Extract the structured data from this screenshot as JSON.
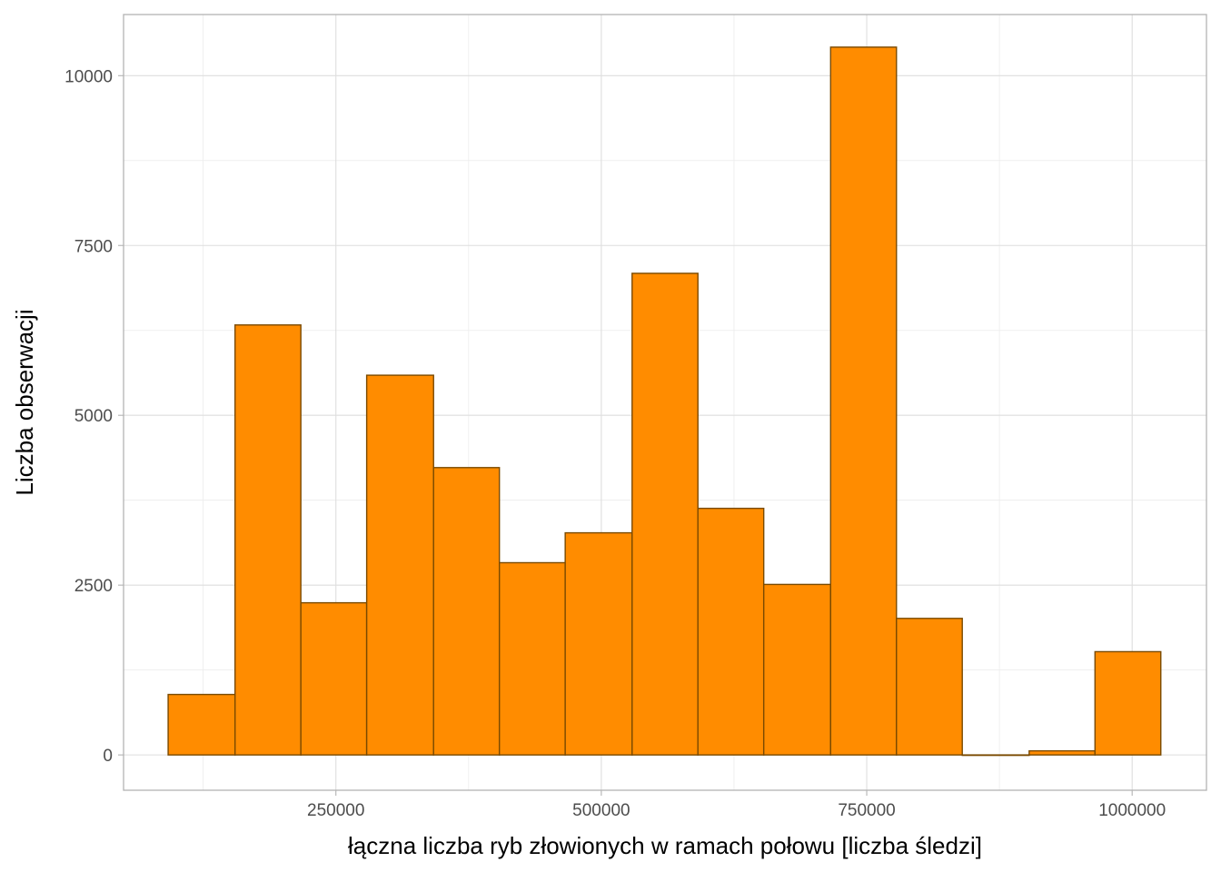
{
  "chart_data": {
    "type": "bar",
    "subtype": "histogram",
    "title": "",
    "xlabel": "łączna liczba ryb złowionych w ramach połowu [liczba śledzi]",
    "ylabel": "Liczba obserwacji",
    "xlim": [
      50000,
      1070000
    ],
    "ylim": [
      -520,
      10900
    ],
    "x_ticks": [
      250000,
      500000,
      750000,
      1000000
    ],
    "x_tick_labels": [
      "250000",
      "500000",
      "750000",
      "1000000"
    ],
    "x_minor_ticks": [
      125000,
      375000,
      625000,
      875000
    ],
    "y_ticks": [
      0,
      2500,
      5000,
      7500,
      10000
    ],
    "y_tick_labels": [
      "0",
      "2500",
      "5000",
      "7500",
      "10000"
    ],
    "y_minor_ticks": [
      1250,
      3750,
      6250,
      8750
    ],
    "grid": true,
    "bins": [
      {
        "x0": 92000,
        "x1": 155000,
        "count": 890
      },
      {
        "x0": 155000,
        "x1": 217000,
        "count": 6330
      },
      {
        "x0": 217000,
        "x1": 279000,
        "count": 2240
      },
      {
        "x0": 279000,
        "x1": 342000,
        "count": 5590
      },
      {
        "x0": 342000,
        "x1": 404000,
        "count": 4230
      },
      {
        "x0": 404000,
        "x1": 466000,
        "count": 2830
      },
      {
        "x0": 466000,
        "x1": 529000,
        "count": 3270
      },
      {
        "x0": 529000,
        "x1": 591000,
        "count": 7090
      },
      {
        "x0": 591000,
        "x1": 653000,
        "count": 3630
      },
      {
        "x0": 653000,
        "x1": 716000,
        "count": 2510
      },
      {
        "x0": 716000,
        "x1": 778000,
        "count": 10420
      },
      {
        "x0": 778000,
        "x1": 840000,
        "count": 2010
      },
      {
        "x0": 840000,
        "x1": 903000,
        "count": 0
      },
      {
        "x0": 903000,
        "x1": 965000,
        "count": 60
      },
      {
        "x0": 965000,
        "x1": 1027000,
        "count": 1520
      }
    ],
    "colors": {
      "bar_fill": "#FF8C00",
      "bar_stroke": "#7a4a00"
    }
  }
}
